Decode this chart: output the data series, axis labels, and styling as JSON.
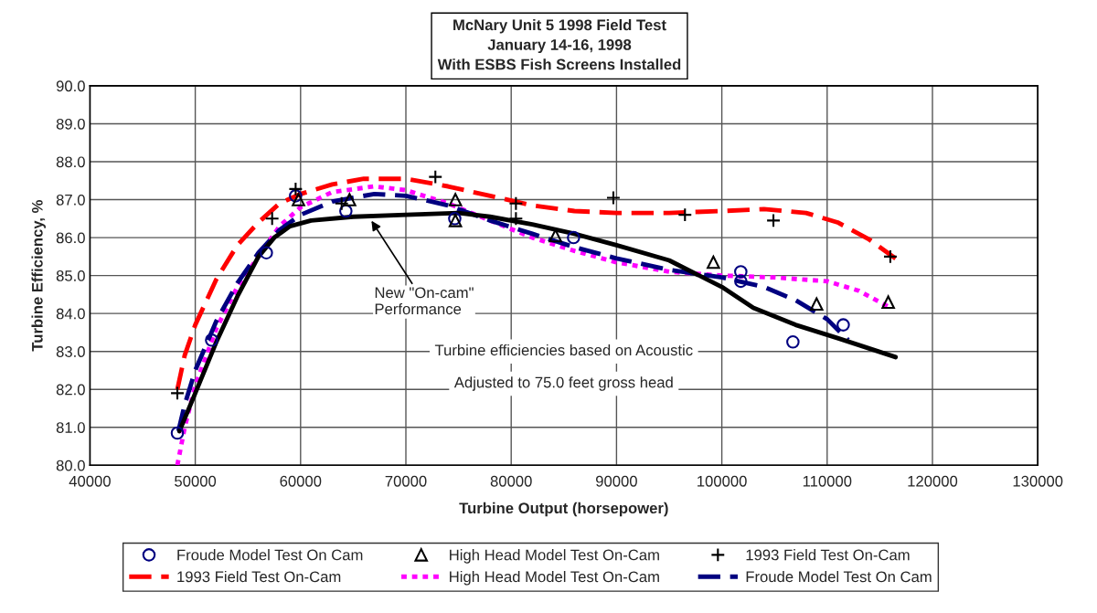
{
  "chart_data": {
    "type": "line",
    "title": "McNary Unit 5 1998 Field Test\nJanuary 14-16, 1998\nWith ESBS Fish Screens Installed",
    "xlabel": "Turbine Output (horsepower)",
    "ylabel": "Turbine Efficiency, %",
    "xlim": [
      40000,
      130000
    ],
    "xticks": [
      40000,
      50000,
      60000,
      70000,
      80000,
      90000,
      100000,
      110000,
      120000,
      130000
    ],
    "ylim": [
      80,
      90
    ],
    "yticks": [
      {
        "value": 80,
        "label": "80.0"
      },
      {
        "value": 81,
        "label": "81.0"
      },
      {
        "value": 82,
        "label": "82.0"
      },
      {
        "value": 83,
        "label": "83.0"
      },
      {
        "value": 84,
        "label": "84.0"
      },
      {
        "value": 85,
        "label": "85.0"
      },
      {
        "value": 86,
        "label": "86.0"
      },
      {
        "value": 87,
        "label": "87.0"
      },
      {
        "value": 88,
        "label": "88.0"
      },
      {
        "value": 89,
        "label": "89.0"
      },
      {
        "value": 90,
        "label": "90.0"
      }
    ],
    "grid": true,
    "legend": "bottom",
    "annotations": [
      {
        "text": "New \"On-cam\"\nPerformance",
        "x": 66600,
        "y": 86.5
      },
      "Turbine efficiencies based on Acoustic",
      "Adjusted to 75.0 feet gross head"
    ],
    "series": [
      {
        "name": "Froude Model Test On Cam",
        "type": "scatter",
        "marker": "circle",
        "color": "#000080",
        "x": [
          48300,
          51550,
          56750,
          59530,
          64300,
          74640,
          85920,
          101800,
          101800,
          106750,
          111530
        ],
        "values": [
          80.85,
          83.3,
          85.6,
          87.1,
          86.7,
          86.5,
          86.0,
          85.1,
          84.85,
          83.25,
          83.7
        ]
      },
      {
        "name": "High Head Model Test On-Cam",
        "type": "scatter",
        "marker": "triangle",
        "color": "#000000",
        "x": [
          59800,
          64650,
          74700,
          74700,
          84200,
          99200,
          109000,
          115800
        ],
        "values": [
          87.0,
          87.0,
          87.0,
          86.45,
          86.05,
          85.35,
          84.25,
          84.3
        ]
      },
      {
        "name": "1993 Field Test On-Cam",
        "type": "scatter",
        "marker": "cross",
        "color": "#000000",
        "x": [
          48300,
          57300,
          59530,
          63900,
          72800,
          80450,
          80450,
          89700,
          96500,
          104900,
          116000
        ],
        "values": [
          81.9,
          86.5,
          87.28,
          86.9,
          87.6,
          86.9,
          86.5,
          87.05,
          86.6,
          86.45,
          85.5
        ]
      },
      {
        "name": "1993 Field Test On-Cam",
        "line_style": "dashed",
        "color": "#ff0000",
        "x": [
          48300,
          49000,
          50000,
          52000,
          54000,
          56000,
          58000,
          60000,
          63000,
          66000,
          70000,
          74000,
          78000,
          82000,
          86000,
          90000,
          95000,
          100000,
          104000,
          108000,
          111000,
          114000,
          116500
        ],
        "values": [
          82.0,
          82.9,
          83.7,
          84.9,
          85.8,
          86.4,
          86.9,
          87.15,
          87.4,
          87.55,
          87.55,
          87.35,
          87.1,
          86.85,
          86.7,
          86.65,
          86.65,
          86.7,
          86.75,
          86.65,
          86.4,
          85.95,
          85.45
        ]
      },
      {
        "name": "High Head Model Test On-Cam",
        "line_style": "dotted",
        "color": "#ff00ff",
        "x": [
          48300,
          49000,
          50000,
          52000,
          54000,
          56000,
          58000,
          60000,
          63000,
          67000,
          70000,
          74000,
          78000,
          82000,
          86000,
          90000,
          95000,
          100000,
          105000,
          110000,
          113000,
          116000
        ],
        "values": [
          80.0,
          81.0,
          82.1,
          83.6,
          84.7,
          85.5,
          86.3,
          86.8,
          87.2,
          87.35,
          87.25,
          86.9,
          86.45,
          86.0,
          85.65,
          85.35,
          85.1,
          85.0,
          84.95,
          84.85,
          84.6,
          84.15
        ]
      },
      {
        "name": "Froude Model Test On Cam",
        "line_style": "dashed",
        "color": "#000080",
        "x": [
          48400,
          49000,
          50000,
          52000,
          54000,
          56000,
          58000,
          60000,
          63000,
          67000,
          70000,
          74000,
          78000,
          82000,
          86000,
          90000,
          95000,
          100000,
          104000,
          107000,
          110000,
          112000
        ],
        "values": [
          80.9,
          81.6,
          82.5,
          83.8,
          84.8,
          85.6,
          86.2,
          86.6,
          86.95,
          87.15,
          87.1,
          86.85,
          86.45,
          86.1,
          85.75,
          85.45,
          85.15,
          84.95,
          84.7,
          84.35,
          83.85,
          83.3
        ]
      },
      {
        "line_style": "solid",
        "color": "#000000",
        "x": [
          48500,
          50000,
          52000,
          54000,
          56000,
          57500,
          59000,
          61000,
          65000,
          70000,
          75000,
          78000,
          82000,
          86000,
          90000,
          95000,
          100000,
          103000,
          107000,
          111000,
          116500
        ],
        "values": [
          80.9,
          81.9,
          83.25,
          84.45,
          85.5,
          86.0,
          86.3,
          86.45,
          86.55,
          86.6,
          86.65,
          86.55,
          86.35,
          86.1,
          85.8,
          85.4,
          84.7,
          84.15,
          83.7,
          83.35,
          82.85
        ]
      }
    ]
  }
}
